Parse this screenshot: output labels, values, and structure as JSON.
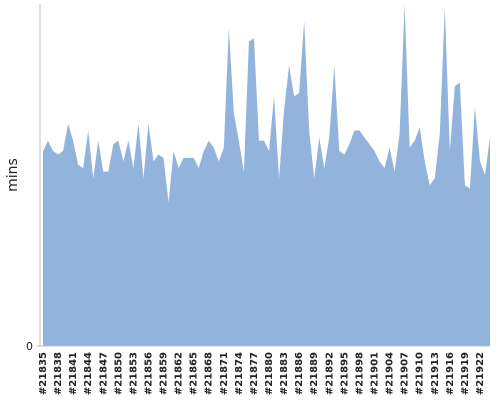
{
  "chart_data": {
    "type": "area",
    "y_label": "mins",
    "color": "#92b4dc",
    "ylim": [
      0,
      100
    ],
    "yticks": [
      0
    ],
    "categories": [
      "#21835",
      null,
      null,
      "#21838",
      null,
      null,
      "#21841",
      null,
      null,
      "#21844",
      null,
      null,
      "#21847",
      null,
      null,
      "#21850",
      null,
      null,
      "#21853",
      null,
      null,
      "#21856",
      null,
      null,
      "#21859",
      null,
      null,
      "#21862",
      null,
      null,
      "#21865",
      null,
      null,
      "#21868",
      null,
      null,
      "#21871",
      null,
      null,
      "#21874",
      null,
      null,
      "#21877",
      null,
      null,
      "#21880",
      null,
      null,
      "#21883",
      null,
      null,
      "#21886",
      null,
      null,
      "#21889",
      null,
      null,
      "#21892",
      null,
      null,
      "#21895",
      null,
      null,
      "#21898",
      null,
      null,
      "#21901",
      null,
      null,
      "#21904",
      null,
      null,
      "#21907",
      null,
      null,
      "#21910",
      null,
      null,
      "#21913",
      null,
      null,
      "#21916",
      null,
      null,
      "#21919",
      null,
      null,
      "#21922",
      null,
      null
    ],
    "values": [
      57,
      60,
      57,
      56,
      57,
      65,
      60,
      53,
      52,
      63,
      49,
      60,
      51,
      51,
      59,
      60,
      54,
      60,
      52,
      65,
      49,
      65,
      54,
      56,
      55,
      42,
      57,
      52,
      55,
      55,
      55,
      52,
      57,
      60,
      58,
      54,
      58,
      93,
      68,
      60,
      51,
      89,
      90,
      60,
      60,
      57,
      73,
      49,
      69,
      82,
      73,
      74,
      95,
      63,
      49,
      61,
      52,
      61,
      82,
      57,
      56,
      59,
      63,
      63,
      61,
      59,
      57,
      54,
      52,
      58,
      51,
      62,
      100,
      58,
      60,
      64,
      54,
      47,
      49,
      62,
      99,
      57,
      76,
      77,
      47,
      46,
      70,
      54,
      50,
      61
    ]
  }
}
